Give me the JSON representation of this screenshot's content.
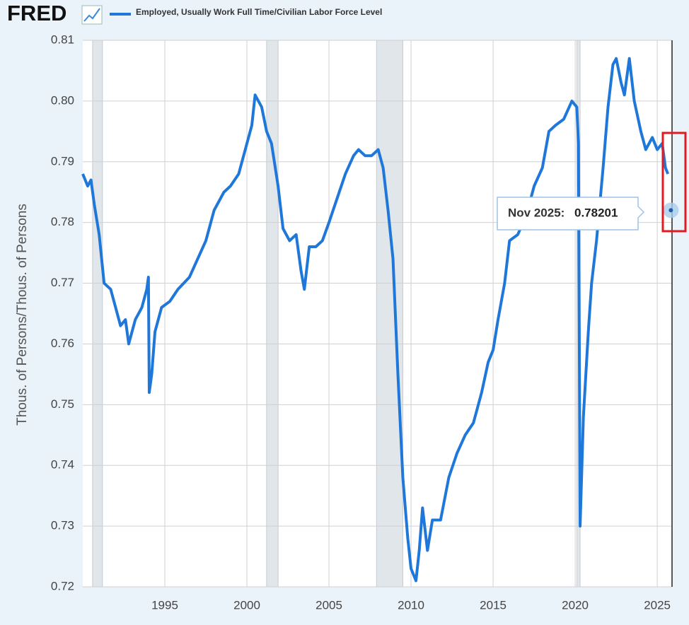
{
  "brand": "FRED",
  "chart_data": {
    "type": "line",
    "y_axis_label": "Thous. of Persons/Thous. of Persons",
    "x": [
      1990.0,
      1990.3,
      1990.5,
      1990.7,
      1991.0,
      1991.3,
      1991.7,
      1992.0,
      1992.3,
      1992.6,
      1992.8,
      1993.2,
      1993.6,
      1993.9,
      1994.0,
      1994.05,
      1994.2,
      1994.4,
      1994.8,
      1995.3,
      1995.8,
      1996.5,
      1997.0,
      1997.5,
      1998.0,
      1998.6,
      1999.0,
      1999.5,
      2000.0,
      2000.3,
      2000.5,
      2000.9,
      2001.2,
      2001.5,
      2001.9,
      2002.2,
      2002.6,
      2003.0,
      2003.3,
      2003.5,
      2003.8,
      2004.2,
      2004.6,
      2005.0,
      2005.5,
      2006.0,
      2006.5,
      2006.8,
      2007.2,
      2007.6,
      2008.0,
      2008.3,
      2008.6,
      2008.9,
      2009.2,
      2009.5,
      2009.8,
      2010.0,
      2010.3,
      2010.5,
      2010.7,
      2011.0,
      2011.3,
      2011.8,
      2012.3,
      2012.8,
      2013.3,
      2013.8,
      2014.3,
      2014.7,
      2015.0,
      2015.3,
      2015.7,
      2016.0,
      2016.5,
      2017.0,
      2017.5,
      2018.0,
      2018.4,
      2018.8,
      2019.3,
      2019.8,
      2020.1,
      2020.2,
      2020.3,
      2020.5,
      2020.8,
      2021.0,
      2021.3,
      2021.7,
      2022.0,
      2022.3,
      2022.5,
      2022.8,
      2023.0,
      2023.3,
      2023.6,
      2024.0,
      2024.3,
      2024.7,
      2025.0,
      2025.3,
      2025.5,
      2025.65
    ],
    "series": [
      {
        "name": "Employed, Usually Work Full Time/Civilian Labor Force Level",
        "color": "#1f78d9",
        "values": [
          0.788,
          0.786,
          0.787,
          0.783,
          0.778,
          0.77,
          0.769,
          0.766,
          0.763,
          0.764,
          0.76,
          0.764,
          0.766,
          0.769,
          0.771,
          0.752,
          0.755,
          0.762,
          0.766,
          0.767,
          0.769,
          0.771,
          0.774,
          0.777,
          0.782,
          0.785,
          0.786,
          0.788,
          0.793,
          0.796,
          0.801,
          0.799,
          0.795,
          0.793,
          0.786,
          0.779,
          0.777,
          0.778,
          0.772,
          0.769,
          0.776,
          0.776,
          0.777,
          0.78,
          0.784,
          0.788,
          0.791,
          0.792,
          0.791,
          0.791,
          0.792,
          0.789,
          0.782,
          0.774,
          0.755,
          0.738,
          0.728,
          0.723,
          0.721,
          0.726,
          0.733,
          0.726,
          0.731,
          0.731,
          0.738,
          0.742,
          0.745,
          0.747,
          0.752,
          0.757,
          0.759,
          0.764,
          0.77,
          0.777,
          0.778,
          0.781,
          0.786,
          0.789,
          0.795,
          0.796,
          0.797,
          0.8,
          0.799,
          0.793,
          0.73,
          0.748,
          0.762,
          0.77,
          0.777,
          0.789,
          0.799,
          0.806,
          0.807,
          0.803,
          0.801,
          0.807,
          0.8,
          0.795,
          0.792,
          0.794,
          0.792,
          0.793,
          0.789,
          0.788
        ]
      }
    ],
    "recessions": [
      [
        1990.6,
        1991.2
      ],
      [
        2001.2,
        2001.9
      ],
      [
        2007.9,
        2009.5
      ],
      [
        2020.1,
        2020.3
      ]
    ],
    "xlim": [
      1990.0,
      2025.9
    ],
    "xticks": [
      1995,
      2000,
      2005,
      2010,
      2015,
      2020,
      2025
    ],
    "ylim": [
      0.72,
      0.81
    ],
    "yticks": [
      0.72,
      0.73,
      0.74,
      0.75,
      0.76,
      0.77,
      0.78,
      0.79,
      {
        "value": 0.8,
        "label": "0.80"
      },
      0.81
    ],
    "grid": true,
    "tooltip": {
      "label": "Nov 2025:",
      "x": 2025.83,
      "value": 0.78201
    }
  }
}
